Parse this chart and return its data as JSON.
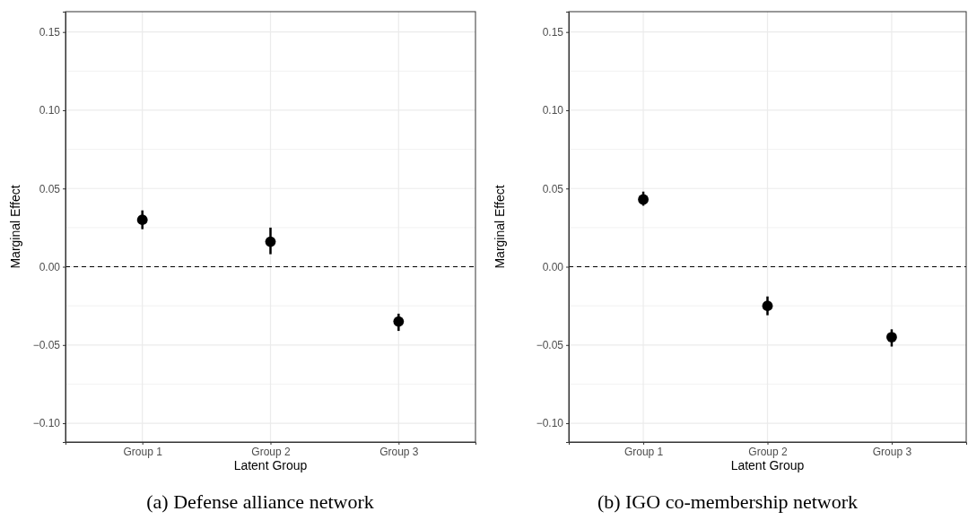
{
  "chart_data": [
    {
      "type": "scatter",
      "title": "(a) Defense alliance network",
      "xlabel": "Latent Group",
      "ylabel": "Marginal Effect",
      "categories": [
        "Group 1",
        "Group 2",
        "Group 3"
      ],
      "series": [
        {
          "color": "#000000",
          "values": [
            0.03,
            0.016,
            -0.035
          ],
          "errors": [
            [
              0.024,
              0.036
            ],
            [
              0.008,
              0.025
            ],
            [
              -0.041,
              -0.03
            ]
          ]
        }
      ],
      "ylim": [
        -0.112,
        0.163
      ],
      "yticks": [
        {
          "value": -0.1,
          "label": "−0.10"
        },
        {
          "value": -0.05,
          "label": "−0.05"
        },
        {
          "value": 0,
          "label": "0.00"
        },
        {
          "value": 0.05,
          "label": "0.05"
        },
        {
          "value": 0.1,
          "label": "0.10"
        },
        {
          "value": 0.15,
          "label": "0.15"
        }
      ],
      "ref_lines": [
        {
          "axis": "y",
          "value": 0,
          "color": "#000000",
          "line_style": "dashed"
        }
      ],
      "grid": true,
      "marker": "circle"
    },
    {
      "type": "scatter",
      "title": "(b) IGO co-membership network",
      "xlabel": "Latent Group",
      "ylabel": "Marginal Effect",
      "categories": [
        "Group 1",
        "Group 2",
        "Group 3"
      ],
      "series": [
        {
          "color": "#000000",
          "values": [
            0.043,
            -0.025,
            -0.045
          ],
          "errors": [
            [
              0.039,
              0.048
            ],
            [
              -0.031,
              -0.019
            ],
            [
              -0.051,
              -0.04
            ]
          ]
        }
      ],
      "ylim": [
        -0.112,
        0.163
      ],
      "yticks": [
        {
          "value": -0.1,
          "label": "−0.10"
        },
        {
          "value": -0.05,
          "label": "−0.05"
        },
        {
          "value": 0,
          "label": "0.00"
        },
        {
          "value": 0.05,
          "label": "0.05"
        },
        {
          "value": 0.1,
          "label": "0.10"
        },
        {
          "value": 0.15,
          "label": "0.15"
        }
      ],
      "ref_lines": [
        {
          "axis": "y",
          "value": 0,
          "color": "#000000",
          "line_style": "dashed"
        }
      ],
      "grid": true,
      "marker": "circle"
    }
  ]
}
